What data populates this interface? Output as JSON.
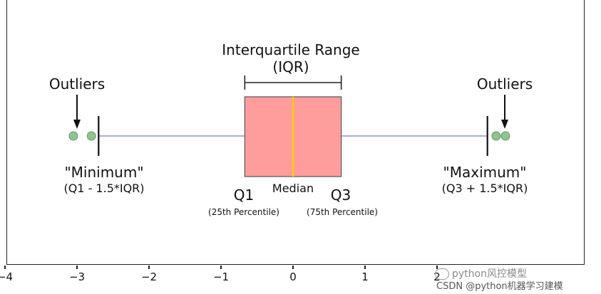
{
  "diagram": {
    "iqr_title": "Interquartile Range",
    "iqr_abbr": "(IQR)",
    "outliers_left": "Outliers",
    "outliers_right": "Outliers",
    "minimum_label": "\"Minimum\"",
    "minimum_formula": "(Q1 - 1.5*IQR)",
    "maximum_label": "\"Maximum\"",
    "maximum_formula": "(Q3 + 1.5*IQR)",
    "q1_label": "Q1",
    "q3_label": "Q3",
    "median_label": "Median",
    "q1_note": "(25th Percentile)",
    "q3_note": "(75th Percentile)",
    "x_ticks": [
      "−4",
      "−3",
      "−2",
      "−1",
      "0",
      "1",
      "2"
    ],
    "box_color": "#ff9c9c",
    "median_color": "#ffd000",
    "whisker_color": "#8f8fe8",
    "outlier_color": "#8fc48f"
  },
  "chart_data": {
    "type": "box",
    "q1": -0.67,
    "median": 0,
    "q3": 0.67,
    "whisker_low": -2.7,
    "whisker_high": 2.7,
    "outliers": [
      -3.05,
      -2.8,
      2.82,
      2.95
    ],
    "xlim": [
      -4,
      4
    ],
    "x_tick_values": [
      -4,
      -3,
      -2,
      -1,
      0,
      1,
      2
    ]
  },
  "watermark": {
    "line1": "python风控模型",
    "line2": "CSDN @python机器学习建模"
  }
}
